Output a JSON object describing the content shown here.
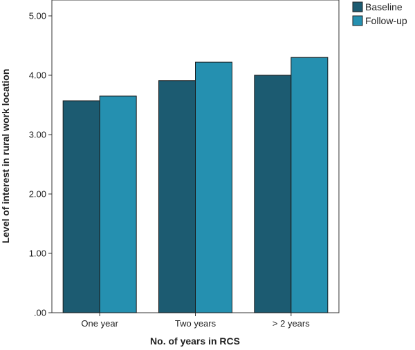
{
  "chart_data": {
    "type": "bar",
    "title": "",
    "xlabel": "No. of years in RCS",
    "ylabel": "Level of interest in rural work location",
    "categories": [
      "One year",
      "Two years",
      "> 2 years"
    ],
    "series": [
      {
        "name": "Baseline",
        "values": [
          3.57,
          3.91,
          4.0
        ],
        "color": "#1c5b71"
      },
      {
        "name": "Follow-up",
        "values": [
          3.65,
          4.22,
          4.3
        ],
        "color": "#2590b0"
      }
    ],
    "ylim": [
      0,
      5
    ],
    "yticks": [
      0,
      1,
      2,
      3,
      4,
      5
    ],
    "ytick_labels": [
      ".00",
      "1.00",
      "2.00",
      "3.00",
      "4.00",
      "5.00"
    ],
    "grid": false,
    "legend_position": "top-right"
  }
}
